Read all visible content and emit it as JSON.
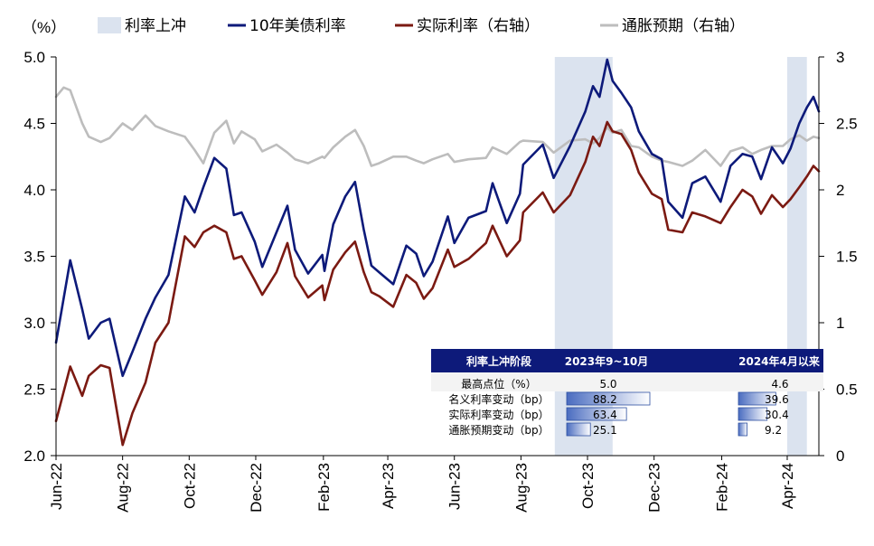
{
  "chart_data": {
    "type": "line",
    "unit_label": "（%）",
    "legend": {
      "placement": "top",
      "items": [
        {
          "label": "利率上冲",
          "color": "#dbe3ef",
          "kind": "band"
        },
        {
          "label": "10年美债利率",
          "color": "#0d1a7a",
          "kind": "line"
        },
        {
          "label": "实际利率（右轴）",
          "color": "#7b1a12",
          "kind": "line"
        },
        {
          "label": "通胀预期（右轴）",
          "color": "#bdbdbd",
          "kind": "line"
        }
      ]
    },
    "x_axis": {
      "start": "2022-06-01",
      "end": "2024-04-30",
      "tick_labels": [
        "Jun-22",
        "Aug-22",
        "Oct-22",
        "Dec-22",
        "Feb-23",
        "Apr-23",
        "Jun-23",
        "Aug-23",
        "Oct-23",
        "Dec-23",
        "Feb-24",
        "Apr-24"
      ],
      "tick_dates": [
        "2022-06-01",
        "2022-08-01",
        "2022-10-01",
        "2022-12-01",
        "2023-02-01",
        "2023-04-01",
        "2023-06-01",
        "2023-08-01",
        "2023-10-01",
        "2023-12-01",
        "2024-02-01",
        "2024-04-01"
      ]
    },
    "y_left": {
      "min": 2.0,
      "max": 5.0,
      "ticks": [
        "2.0",
        "2.5",
        "3.0",
        "3.5",
        "4.0",
        "4.5",
        "5.0"
      ]
    },
    "y_right": {
      "min": 0,
      "max": 3,
      "ticks": [
        "0",
        "0.5",
        "1",
        "1.5",
        "2",
        "2.5",
        "3"
      ]
    },
    "grid": false,
    "shaded_periods": [
      {
        "start": "2023-09-01",
        "end": "2023-10-24"
      },
      {
        "start": "2024-04-01",
        "end": "2024-04-19"
      }
    ],
    "series": [
      {
        "name": "10年美债利率",
        "axis": "left",
        "color": "#0d1a7a",
        "points": [
          [
            "2022-06-01",
            2.85
          ],
          [
            "2022-06-14",
            3.47
          ],
          [
            "2022-06-25",
            3.1
          ],
          [
            "2022-07-01",
            2.88
          ],
          [
            "2022-07-12",
            3.0
          ],
          [
            "2022-07-20",
            3.03
          ],
          [
            "2022-08-01",
            2.6
          ],
          [
            "2022-08-10",
            2.78
          ],
          [
            "2022-08-22",
            3.03
          ],
          [
            "2022-08-31",
            3.19
          ],
          [
            "2022-09-12",
            3.36
          ],
          [
            "2022-09-27",
            3.95
          ],
          [
            "2022-10-06",
            3.83
          ],
          [
            "2022-10-14",
            4.02
          ],
          [
            "2022-10-24",
            4.24
          ],
          [
            "2022-11-04",
            4.16
          ],
          [
            "2022-11-11",
            3.81
          ],
          [
            "2022-11-18",
            3.83
          ],
          [
            "2022-11-30",
            3.61
          ],
          [
            "2022-12-07",
            3.42
          ],
          [
            "2022-12-20",
            3.68
          ],
          [
            "2022-12-30",
            3.88
          ],
          [
            "2023-01-06",
            3.55
          ],
          [
            "2023-01-18",
            3.37
          ],
          [
            "2023-01-31",
            3.51
          ],
          [
            "2023-02-02",
            3.39
          ],
          [
            "2023-02-10",
            3.74
          ],
          [
            "2023-02-21",
            3.95
          ],
          [
            "2023-03-02",
            4.06
          ],
          [
            "2023-03-10",
            3.7
          ],
          [
            "2023-03-17",
            3.43
          ],
          [
            "2023-03-24",
            3.38
          ],
          [
            "2023-04-06",
            3.29
          ],
          [
            "2023-04-18",
            3.58
          ],
          [
            "2023-04-27",
            3.52
          ],
          [
            "2023-05-04",
            3.35
          ],
          [
            "2023-05-12",
            3.46
          ],
          [
            "2023-05-26",
            3.8
          ],
          [
            "2023-06-01",
            3.6
          ],
          [
            "2023-06-14",
            3.79
          ],
          [
            "2023-06-30",
            3.84
          ],
          [
            "2023-07-06",
            4.05
          ],
          [
            "2023-07-19",
            3.75
          ],
          [
            "2023-07-31",
            3.97
          ],
          [
            "2023-08-03",
            4.19
          ],
          [
            "2023-08-21",
            4.34
          ],
          [
            "2023-08-31",
            4.09
          ],
          [
            "2023-09-15",
            4.33
          ],
          [
            "2023-09-29",
            4.59
          ],
          [
            "2023-10-06",
            4.78
          ],
          [
            "2023-10-12",
            4.7
          ],
          [
            "2023-10-19",
            4.98
          ],
          [
            "2023-10-24",
            4.82
          ],
          [
            "2023-11-01",
            4.73
          ],
          [
            "2023-11-10",
            4.62
          ],
          [
            "2023-11-17",
            4.44
          ],
          [
            "2023-11-29",
            4.27
          ],
          [
            "2023-12-08",
            4.23
          ],
          [
            "2023-12-14",
            3.91
          ],
          [
            "2023-12-27",
            3.79
          ],
          [
            "2024-01-05",
            4.05
          ],
          [
            "2024-01-17",
            4.1
          ],
          [
            "2024-01-31",
            3.91
          ],
          [
            "2024-02-09",
            4.18
          ],
          [
            "2024-02-20",
            4.27
          ],
          [
            "2024-02-29",
            4.25
          ],
          [
            "2024-03-08",
            4.08
          ],
          [
            "2024-03-18",
            4.32
          ],
          [
            "2024-03-28",
            4.2
          ],
          [
            "2024-04-04",
            4.31
          ],
          [
            "2024-04-12",
            4.5
          ],
          [
            "2024-04-19",
            4.62
          ],
          [
            "2024-04-25",
            4.7
          ],
          [
            "2024-04-30",
            4.59
          ]
        ]
      },
      {
        "name": "实际利率（右轴）",
        "axis": "right",
        "color": "#7b1a12",
        "points": [
          [
            "2022-06-01",
            0.26
          ],
          [
            "2022-06-14",
            0.67
          ],
          [
            "2022-06-25",
            0.45
          ],
          [
            "2022-07-01",
            0.6
          ],
          [
            "2022-07-12",
            0.68
          ],
          [
            "2022-07-20",
            0.66
          ],
          [
            "2022-08-01",
            0.08
          ],
          [
            "2022-08-10",
            0.32
          ],
          [
            "2022-08-22",
            0.55
          ],
          [
            "2022-08-31",
            0.85
          ],
          [
            "2022-09-12",
            1.0
          ],
          [
            "2022-09-27",
            1.65
          ],
          [
            "2022-10-06",
            1.57
          ],
          [
            "2022-10-14",
            1.68
          ],
          [
            "2022-10-24",
            1.73
          ],
          [
            "2022-11-04",
            1.68
          ],
          [
            "2022-11-11",
            1.48
          ],
          [
            "2022-11-18",
            1.5
          ],
          [
            "2022-11-30",
            1.32
          ],
          [
            "2022-12-07",
            1.21
          ],
          [
            "2022-12-20",
            1.38
          ],
          [
            "2022-12-30",
            1.6
          ],
          [
            "2023-01-06",
            1.35
          ],
          [
            "2023-01-18",
            1.19
          ],
          [
            "2023-01-31",
            1.28
          ],
          [
            "2023-02-02",
            1.17
          ],
          [
            "2023-02-10",
            1.4
          ],
          [
            "2023-02-21",
            1.53
          ],
          [
            "2023-03-02",
            1.61
          ],
          [
            "2023-03-10",
            1.38
          ],
          [
            "2023-03-17",
            1.23
          ],
          [
            "2023-03-24",
            1.2
          ],
          [
            "2023-04-06",
            1.12
          ],
          [
            "2023-04-18",
            1.36
          ],
          [
            "2023-04-27",
            1.3
          ],
          [
            "2023-05-04",
            1.18
          ],
          [
            "2023-05-12",
            1.26
          ],
          [
            "2023-05-26",
            1.55
          ],
          [
            "2023-06-01",
            1.42
          ],
          [
            "2023-06-14",
            1.48
          ],
          [
            "2023-06-30",
            1.6
          ],
          [
            "2023-07-06",
            1.73
          ],
          [
            "2023-07-19",
            1.5
          ],
          [
            "2023-07-31",
            1.62
          ],
          [
            "2023-08-03",
            1.83
          ],
          [
            "2023-08-21",
            1.98
          ],
          [
            "2023-08-31",
            1.83
          ],
          [
            "2023-09-15",
            1.96
          ],
          [
            "2023-09-29",
            2.21
          ],
          [
            "2023-10-06",
            2.4
          ],
          [
            "2023-10-12",
            2.33
          ],
          [
            "2023-10-19",
            2.51
          ],
          [
            "2023-10-24",
            2.44
          ],
          [
            "2023-11-01",
            2.42
          ],
          [
            "2023-11-10",
            2.3
          ],
          [
            "2023-11-17",
            2.13
          ],
          [
            "2023-11-29",
            1.97
          ],
          [
            "2023-12-08",
            1.93
          ],
          [
            "2023-12-14",
            1.7
          ],
          [
            "2023-12-27",
            1.68
          ],
          [
            "2024-01-05",
            1.83
          ],
          [
            "2024-01-17",
            1.8
          ],
          [
            "2024-01-31",
            1.75
          ],
          [
            "2024-02-09",
            1.87
          ],
          [
            "2024-02-20",
            2.0
          ],
          [
            "2024-02-29",
            1.95
          ],
          [
            "2024-03-08",
            1.82
          ],
          [
            "2024-03-18",
            1.96
          ],
          [
            "2024-03-28",
            1.87
          ],
          [
            "2024-04-04",
            1.93
          ],
          [
            "2024-04-12",
            2.02
          ],
          [
            "2024-04-19",
            2.1
          ],
          [
            "2024-04-25",
            2.18
          ],
          [
            "2024-04-30",
            2.14
          ]
        ]
      },
      {
        "name": "通胀预期（右轴）",
        "axis": "right",
        "color": "#bdbdbd",
        "points": [
          [
            "2022-06-01",
            2.7
          ],
          [
            "2022-06-08",
            2.77
          ],
          [
            "2022-06-14",
            2.75
          ],
          [
            "2022-06-25",
            2.5
          ],
          [
            "2022-07-01",
            2.4
          ],
          [
            "2022-07-12",
            2.36
          ],
          [
            "2022-07-20",
            2.39
          ],
          [
            "2022-08-01",
            2.5
          ],
          [
            "2022-08-10",
            2.45
          ],
          [
            "2022-08-22",
            2.56
          ],
          [
            "2022-08-31",
            2.48
          ],
          [
            "2022-09-12",
            2.44
          ],
          [
            "2022-09-27",
            2.4
          ],
          [
            "2022-10-06",
            2.3
          ],
          [
            "2022-10-14",
            2.2
          ],
          [
            "2022-10-24",
            2.43
          ],
          [
            "2022-11-04",
            2.52
          ],
          [
            "2022-11-11",
            2.35
          ],
          [
            "2022-11-18",
            2.44
          ],
          [
            "2022-11-30",
            2.38
          ],
          [
            "2022-12-07",
            2.29
          ],
          [
            "2022-12-20",
            2.34
          ],
          [
            "2022-12-30",
            2.28
          ],
          [
            "2023-01-06",
            2.23
          ],
          [
            "2023-01-18",
            2.2
          ],
          [
            "2023-01-31",
            2.25
          ],
          [
            "2023-02-02",
            2.24
          ],
          [
            "2023-02-10",
            2.32
          ],
          [
            "2023-02-21",
            2.4
          ],
          [
            "2023-03-02",
            2.45
          ],
          [
            "2023-03-10",
            2.33
          ],
          [
            "2023-03-17",
            2.18
          ],
          [
            "2023-03-24",
            2.2
          ],
          [
            "2023-04-06",
            2.25
          ],
          [
            "2023-04-18",
            2.25
          ],
          [
            "2023-04-27",
            2.22
          ],
          [
            "2023-05-04",
            2.2
          ],
          [
            "2023-05-12",
            2.23
          ],
          [
            "2023-05-26",
            2.27
          ],
          [
            "2023-06-01",
            2.21
          ],
          [
            "2023-06-14",
            2.23
          ],
          [
            "2023-06-30",
            2.24
          ],
          [
            "2023-07-06",
            2.32
          ],
          [
            "2023-07-19",
            2.27
          ],
          [
            "2023-07-31",
            2.36
          ],
          [
            "2023-08-03",
            2.37
          ],
          [
            "2023-08-21",
            2.36
          ],
          [
            "2023-08-31",
            2.28
          ],
          [
            "2023-09-15",
            2.37
          ],
          [
            "2023-09-29",
            2.38
          ],
          [
            "2023-10-06",
            2.35
          ],
          [
            "2023-10-12",
            2.39
          ],
          [
            "2023-10-19",
            2.47
          ],
          [
            "2023-10-24",
            2.43
          ],
          [
            "2023-11-01",
            2.45
          ],
          [
            "2023-11-10",
            2.33
          ],
          [
            "2023-11-17",
            2.32
          ],
          [
            "2023-11-29",
            2.25
          ],
          [
            "2023-12-08",
            2.22
          ],
          [
            "2023-12-14",
            2.21
          ],
          [
            "2023-12-27",
            2.18
          ],
          [
            "2024-01-05",
            2.22
          ],
          [
            "2024-01-17",
            2.3
          ],
          [
            "2024-01-31",
            2.18
          ],
          [
            "2024-02-09",
            2.29
          ],
          [
            "2024-02-20",
            2.32
          ],
          [
            "2024-02-29",
            2.27
          ],
          [
            "2024-03-08",
            2.3
          ],
          [
            "2024-03-18",
            2.33
          ],
          [
            "2024-03-28",
            2.33
          ],
          [
            "2024-04-04",
            2.38
          ],
          [
            "2024-04-12",
            2.41
          ],
          [
            "2024-04-19",
            2.37
          ],
          [
            "2024-04-25",
            2.4
          ],
          [
            "2024-04-30",
            2.39
          ]
        ]
      }
    ],
    "table": {
      "headers": [
        "利率上冲阶段",
        "2023年9~10月",
        "2024年4月以来"
      ],
      "header_color": "#0d1a7a",
      "rows": [
        {
          "label": "最高点位（%）",
          "values": [
            5.0,
            4.6
          ],
          "display": [
            "5.0",
            "4.6"
          ],
          "bar": false
        },
        {
          "label": "名义利率变动（bp）",
          "values": [
            88.2,
            39.6
          ],
          "display": [
            "88.2",
            "39.6"
          ],
          "bar": true
        },
        {
          "label": "实际利率变动（bp）",
          "values": [
            63.4,
            30.4
          ],
          "display": [
            "63.4",
            "30.4"
          ],
          "bar": true
        },
        {
          "label": "通胀预期变动（bp）",
          "values": [
            25.1,
            9.2
          ],
          "display": [
            "25.1",
            "9.2"
          ],
          "bar": true
        }
      ]
    }
  }
}
